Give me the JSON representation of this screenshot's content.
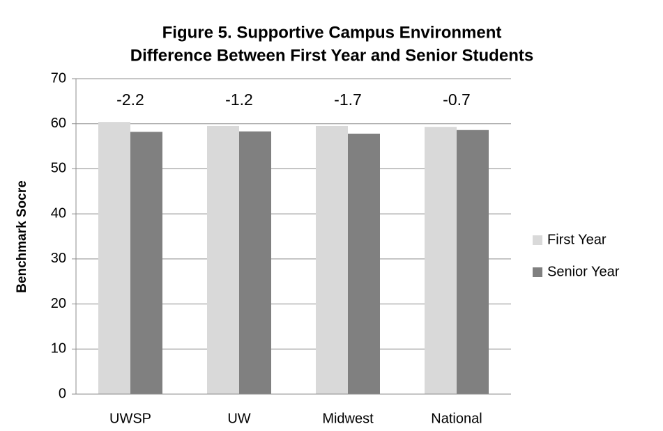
{
  "chart_data": {
    "type": "bar",
    "title": "Figure 5.  Supportive Campus Environment",
    "subtitle": "Difference Between First Year and Senior Students",
    "y_label": "Benchmark Socre",
    "categories": [
      "UWSP",
      "UW",
      "Midwest",
      "National"
    ],
    "series": [
      {
        "name": "First Year",
        "color": "#d9d9d9",
        "values": [
          60.4,
          59.5,
          59.5,
          59.3
        ]
      },
      {
        "name": "Senior Year",
        "color": "#808080",
        "values": [
          58.2,
          58.3,
          57.8,
          58.6
        ]
      }
    ],
    "annotations": [
      "-2.2",
      "-1.2",
      "-1.7",
      "-0.7"
    ],
    "ylim": [
      0,
      70
    ],
    "yticks": [
      0,
      10,
      20,
      30,
      40,
      50,
      60,
      70
    ],
    "grid": true,
    "legend": "right"
  }
}
